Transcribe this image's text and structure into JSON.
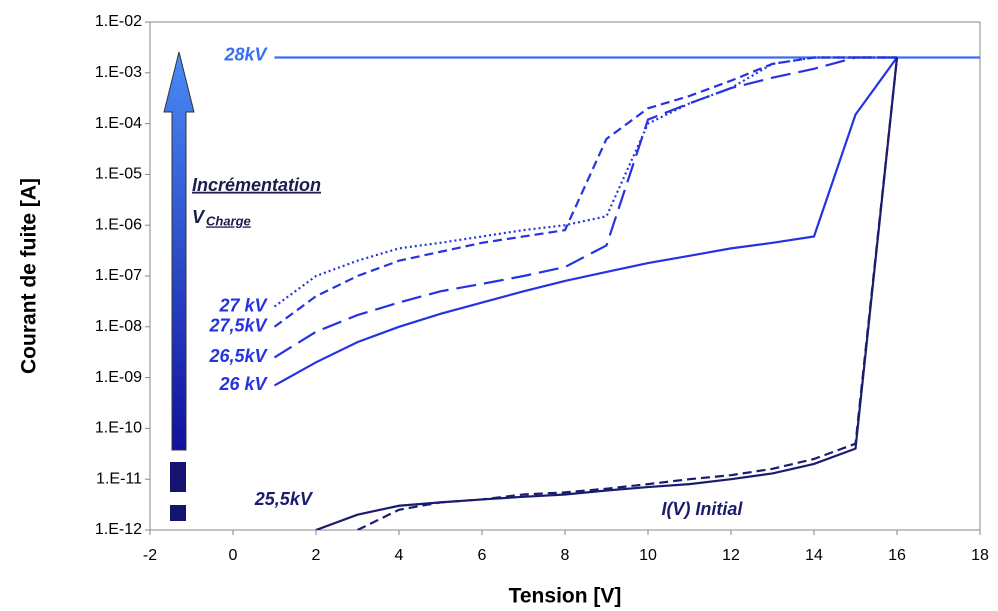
{
  "chart_data": {
    "type": "line",
    "x_label": "Tension [V]",
    "y_label": "Courant de fuite [A]",
    "y_log": true,
    "xlim": [
      -2,
      18
    ],
    "xticks": [
      -2,
      0,
      2,
      4,
      6,
      8,
      10,
      12,
      14,
      16,
      18
    ],
    "ylim": [
      1e-12,
      0.01
    ],
    "yticks": [
      {
        "value": 1e-12,
        "label": "1.E-12"
      },
      {
        "value": 1e-11,
        "label": "1.E-11"
      },
      {
        "value": 1e-10,
        "label": "1.E-10"
      },
      {
        "value": 1e-09,
        "label": "1.E-09"
      },
      {
        "value": 1e-08,
        "label": "1.E-08"
      },
      {
        "value": 1e-07,
        "label": "1.E-07"
      },
      {
        "value": 1e-06,
        "label": "1.E-06"
      },
      {
        "value": 1e-05,
        "label": "1.E-05"
      },
      {
        "value": 0.0001,
        "label": "1.E-04"
      },
      {
        "value": 0.001,
        "label": "1.E-03"
      },
      {
        "value": 0.01,
        "label": "1.E-02"
      }
    ],
    "annotations": [
      "Incrémentation",
      "V",
      "Charge"
    ],
    "series": [
      {
        "name": "28kV",
        "color": "#3a6ef0",
        "dash": "solid",
        "x": [
          1,
          18
        ],
        "values": [
          0.002,
          0.002
        ]
      },
      {
        "name": "27 kV",
        "color": "#2633e0",
        "dash": "dotted",
        "x": [
          1,
          2,
          3,
          4,
          5,
          6,
          7,
          8,
          9,
          10,
          11,
          12,
          13,
          14,
          15,
          16
        ],
        "values": [
          2.5e-08,
          1e-07,
          2e-07,
          3.5e-07,
          4.5e-07,
          6e-07,
          8e-07,
          1e-06,
          1.5e-06,
          0.0001,
          0.00025,
          0.0005,
          0.0015,
          0.002,
          0.002,
          0.002
        ]
      },
      {
        "name": "27,5kV",
        "color": "#2633e0",
        "dash": "dashed",
        "x": [
          1,
          2,
          3,
          4,
          5,
          6,
          7,
          8,
          9,
          10,
          11,
          12,
          13,
          14,
          15,
          16
        ],
        "values": [
          1e-08,
          4e-08,
          1e-07,
          2e-07,
          3e-07,
          4.5e-07,
          6e-07,
          8e-07,
          5e-05,
          0.0002,
          0.00035,
          0.0007,
          0.0015,
          0.002,
          0.002,
          0.002
        ]
      },
      {
        "name": "26,5kV",
        "color": "#2633e0",
        "dash": "longdash",
        "x": [
          1,
          2,
          3,
          4,
          5,
          6,
          7,
          8,
          9,
          10,
          11,
          12,
          13,
          14,
          15,
          16
        ],
        "values": [
          2.5e-09,
          8e-09,
          1.7e-08,
          3e-08,
          5e-08,
          7e-08,
          1e-07,
          1.5e-07,
          4e-07,
          0.00012,
          0.00025,
          0.0005,
          0.0008,
          0.0012,
          0.002,
          0.002
        ]
      },
      {
        "name": "26 kV",
        "color": "#2633e0",
        "dash": "solid",
        "x": [
          1,
          2,
          3,
          4,
          5,
          6,
          7,
          8,
          9,
          10,
          11,
          12,
          13,
          14,
          15,
          16
        ],
        "values": [
          7e-10,
          2e-09,
          5e-09,
          1e-08,
          1.8e-08,
          3e-08,
          5e-08,
          8e-08,
          1.2e-07,
          1.8e-07,
          2.5e-07,
          3.5e-07,
          4.5e-07,
          6e-07,
          0.00015,
          0.002
        ]
      },
      {
        "name": "25,5kV",
        "color": "#1c1c6e",
        "dash": "solid",
        "x": [
          2,
          3,
          4,
          5,
          6,
          7,
          8,
          9,
          10,
          11,
          12,
          13,
          14,
          15,
          16
        ],
        "values": [
          1e-12,
          2e-12,
          3e-12,
          3.5e-12,
          4e-12,
          4.5e-12,
          5e-12,
          6e-12,
          7e-12,
          8e-12,
          1e-11,
          1.3e-11,
          2e-11,
          4e-11,
          0.002
        ]
      },
      {
        "name": "I(V) Initial",
        "color": "#1c1c6e",
        "dash": "dashed",
        "x": [
          3,
          4,
          5,
          6,
          7,
          8,
          9,
          10,
          11,
          12,
          13,
          14,
          15,
          16
        ],
        "values": [
          1e-12,
          2.5e-12,
          3.5e-12,
          4e-12,
          5e-12,
          5.5e-12,
          6.5e-12,
          8e-12,
          1e-11,
          1.2e-11,
          1.6e-11,
          2.5e-11,
          5e-11,
          0.002
        ]
      }
    ]
  }
}
